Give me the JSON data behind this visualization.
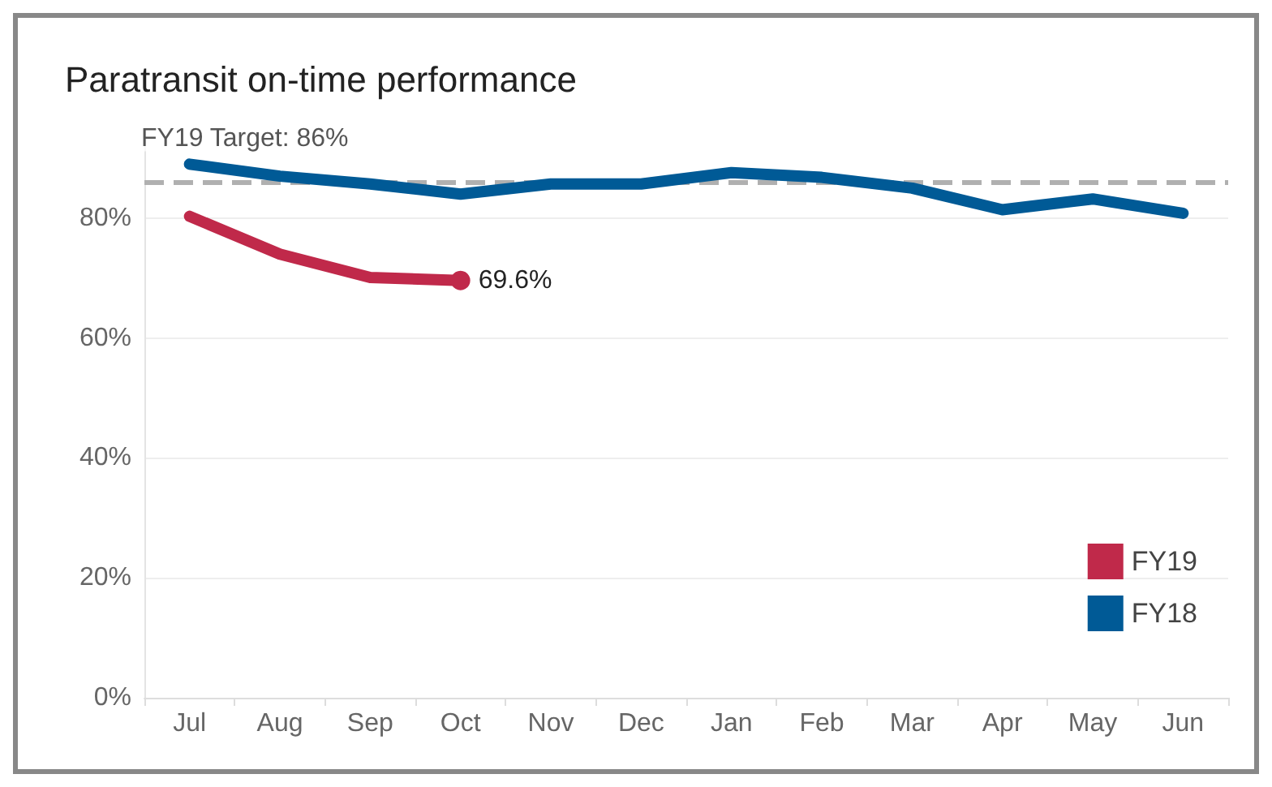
{
  "chart_data": {
    "type": "line",
    "title": "Paratransit on-time performance",
    "categories": [
      "Jul",
      "Aug",
      "Sep",
      "Oct",
      "Nov",
      "Dec",
      "Jan",
      "Feb",
      "Mar",
      "Apr",
      "May",
      "Jun"
    ],
    "series": [
      {
        "name": "FY19",
        "color": "#c0294a",
        "values": [
          80.3,
          74,
          70.1,
          69.6,
          null,
          null,
          null,
          null,
          null,
          null,
          null,
          null
        ],
        "value_labels": [
          null,
          null,
          null,
          "69.6%",
          null,
          null,
          null,
          null,
          null,
          null,
          null,
          null
        ]
      },
      {
        "name": "FY18",
        "color": "#005a96",
        "values": [
          89,
          87,
          85.7,
          84,
          85.7,
          85.7,
          87.6,
          86.8,
          85,
          81.4,
          83.2,
          80.8
        ]
      }
    ],
    "ylim": [
      0,
      95
    ],
    "yticks": [
      {
        "value": 0,
        "label": "0%"
      },
      {
        "value": 20,
        "label": "20%"
      },
      {
        "value": 40,
        "label": "40%"
      },
      {
        "value": 60,
        "label": "60%"
      },
      {
        "value": 80,
        "label": "80%"
      }
    ],
    "ref_lines": [
      {
        "axis": "y",
        "value": 86,
        "label": "FY19 Target: 86%",
        "color": "#b0b0b0",
        "line_style": "dashed"
      }
    ],
    "grid": "y",
    "legend": "bottom right",
    "line_style": "solid"
  }
}
